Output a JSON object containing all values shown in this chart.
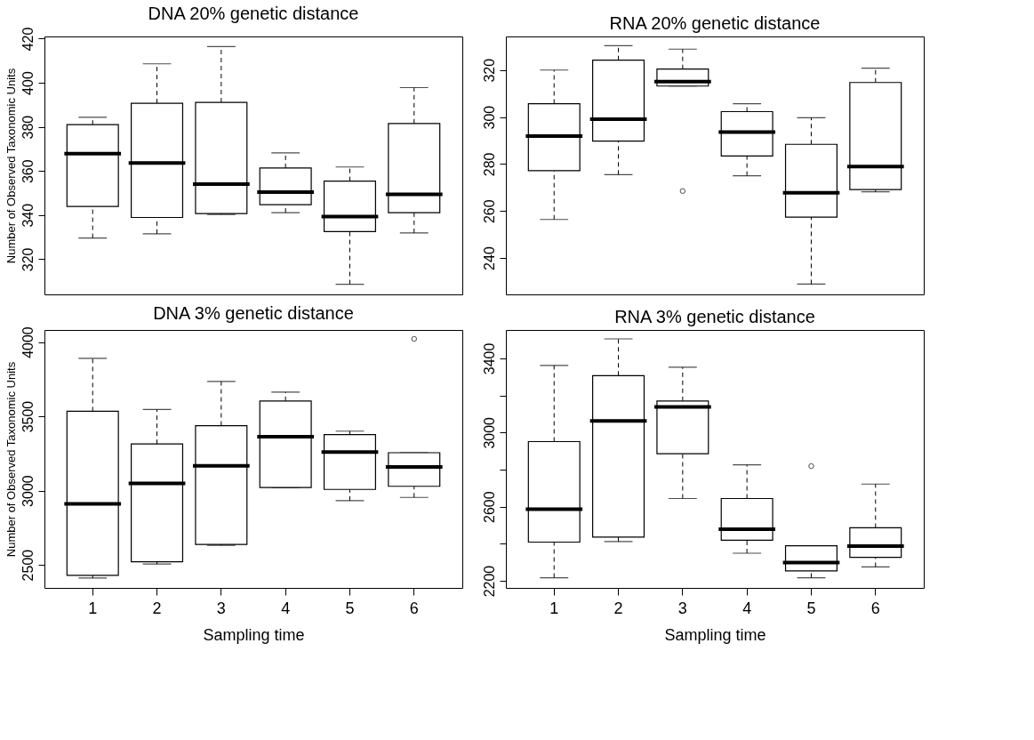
{
  "chart_data": [
    {
      "type": "box",
      "title": "DNA 20% genetic distance",
      "ylabel": "Number of Observed Taxonomic Units",
      "categories": [
        "1",
        "2",
        "3",
        "4",
        "5",
        "6"
      ],
      "ylim": [
        304,
        421
      ],
      "yticks": [
        320,
        340,
        360,
        380,
        400,
        420
      ],
      "tick_labels": "y",
      "grid": false,
      "boxes": [
        {
          "low": 329.6,
          "q1": 343.9,
          "median": 367.8,
          "q3": 381,
          "high": 384.3
        },
        {
          "low": 331.5,
          "q1": 338.9,
          "median": 363.6,
          "q3": 390.7,
          "high": 408.6
        },
        {
          "low": 340.3,
          "q1": 340.7,
          "median": 354,
          "q3": 391.1,
          "high": 416.4
        },
        {
          "low": 341.1,
          "q1": 344.7,
          "median": 350.4,
          "q3": 361.3,
          "high": 368.2
        },
        {
          "low": 308.6,
          "q1": 332.5,
          "median": 339.3,
          "q3": 355.4,
          "high": 361.8
        },
        {
          "low": 331.9,
          "q1": 341.1,
          "median": 349.4,
          "q3": 381.5,
          "high": 397.8
        }
      ]
    },
    {
      "type": "box",
      "title": "RNA 20% genetic distance",
      "categories": [
        "1",
        "2",
        "3",
        "4",
        "5",
        "6"
      ],
      "ylim": [
        224.5,
        334.3
      ],
      "yticks": [
        240,
        260,
        280,
        300,
        320
      ],
      "tick_labels": "y",
      "grid": false,
      "boxes": [
        {
          "low": 256.4,
          "q1": 277.2,
          "median": 291.9,
          "q3": 305.7,
          "high": 320
        },
        {
          "low": 275.5,
          "q1": 289.8,
          "median": 299.1,
          "q3": 324.2,
          "high": 330.4
        },
        {
          "low": 313.2,
          "q1": 313.2,
          "median": 315.1,
          "q3": 320.4,
          "high": 328.9,
          "outliers": [
            268.5
          ]
        },
        {
          "low": 275,
          "q1": 283.4,
          "median": 293.6,
          "q3": 302.3,
          "high": 305.7
        },
        {
          "low": 228.9,
          "q1": 257.4,
          "median": 267.8,
          "q3": 288.4,
          "high": 299.7
        },
        {
          "low": 268.2,
          "q1": 269.1,
          "median": 278.9,
          "q3": 314.7,
          "high": 320.8
        }
      ]
    },
    {
      "type": "box",
      "title": "DNA 3% genetic distance",
      "xlabel": "Sampling time",
      "ylabel": "Number of Observed Taxonomic Units",
      "categories": [
        "1",
        "2",
        "3",
        "4",
        "5",
        "6"
      ],
      "ylim": [
        2345,
        4081
      ],
      "yticks": [
        2500,
        3000,
        3500,
        4000
      ],
      "grid": false,
      "boxes": [
        {
          "low": 2411,
          "q1": 2430,
          "median": 2910,
          "q3": 3534,
          "high": 3890
        },
        {
          "low": 2506,
          "q1": 2521,
          "median": 3049,
          "q3": 3314,
          "high": 3546
        },
        {
          "low": 2632,
          "q1": 2638,
          "median": 3166,
          "q3": 3437,
          "high": 3734
        },
        {
          "low": 3021,
          "q1": 3021,
          "median": 3363,
          "q3": 3603,
          "high": 3663
        },
        {
          "low": 2932,
          "q1": 3008,
          "median": 3259,
          "q3": 3377,
          "high": 3400
        },
        {
          "low": 2954,
          "q1": 3029,
          "median": 3159,
          "q3": 3255,
          "high": 3255,
          "outliers": [
            4021
          ]
        }
      ]
    },
    {
      "type": "box",
      "title": "RNA 3% genetic distance",
      "xlabel": "Sampling time",
      "categories": [
        "1",
        "2",
        "3",
        "4",
        "5",
        "6"
      ],
      "ylim": [
        2162,
        3553
      ],
      "yticks": [
        2200,
        {
          "value": 2400,
          "label": null
        },
        2600,
        {
          "value": 2800,
          "label": null
        },
        3000,
        {
          "value": 3200,
          "label": null
        },
        3400
      ],
      "grid": false,
      "boxes": [
        {
          "low": 2217,
          "q1": 2409,
          "median": 2586,
          "q3": 2951,
          "high": 3362
        },
        {
          "low": 2412,
          "q1": 2436,
          "median": 3063,
          "q3": 3307,
          "high": 3505
        },
        {
          "low": 2644,
          "q1": 2886,
          "median": 3138,
          "q3": 3170,
          "high": 3352
        },
        {
          "low": 2349,
          "q1": 2419,
          "median": 2479,
          "q3": 2644,
          "high": 2826
        },
        {
          "low": 2217,
          "q1": 2254,
          "median": 2299,
          "q3": 2389,
          "high": 2389,
          "outliers": [
            2819
          ]
        },
        {
          "low": 2275,
          "q1": 2327,
          "median": 2387,
          "q3": 2486,
          "high": 2722
        }
      ]
    }
  ]
}
